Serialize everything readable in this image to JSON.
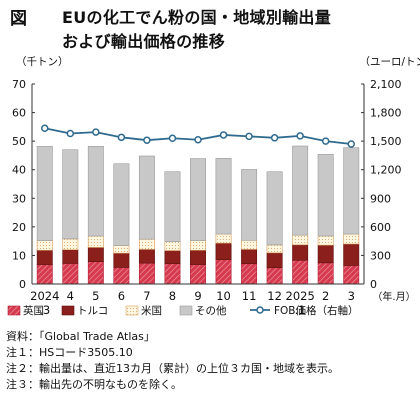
{
  "figure": {
    "label": "図",
    "title_line1": "EUの化工でん粉の国・地域別輸出量",
    "title_line2": "および輸出価格の推移"
  },
  "chart_data": {
    "type": "bar",
    "stacked": true,
    "left_axis_label": "（千トン）",
    "right_axis_label": "（ユーロ/トン）",
    "x_unit_label": "（年.月）",
    "x_labels": [
      "2024\n.3",
      "4",
      "5",
      "6",
      "7",
      "8",
      "9",
      "10",
      "11",
      "12",
      "2025\n.1",
      "2",
      "3"
    ],
    "ylim": [
      0,
      70
    ],
    "yticks": [
      0,
      10,
      20,
      30,
      40,
      50,
      60,
      70
    ],
    "y2lim": [
      0,
      2100
    ],
    "y2ticks": [
      0,
      300,
      600,
      900,
      1200,
      1500,
      1800,
      2100
    ],
    "y2tick_labels": [
      "0",
      "300",
      "600",
      "900",
      "1,200",
      "1,500",
      "1,800",
      "2,100"
    ],
    "grid": false,
    "legend_position": "bottom",
    "series": [
      {
        "name": "英国",
        "color": "#d63a4f",
        "values": [
          6.8,
          7.2,
          7.8,
          5.8,
          7.3,
          7.1,
          6.8,
          8.5,
          7.1,
          5.7,
          8.3,
          7.4,
          6.5
        ]
      },
      {
        "name": "トルコ",
        "color": "#8a1f1c",
        "values": [
          5.0,
          4.8,
          5.0,
          5.0,
          4.8,
          4.6,
          5.0,
          5.8,
          5.0,
          5.2,
          5.4,
          6.2,
          7.5
        ]
      },
      {
        "name": "米国",
        "color": "#fff6e0",
        "values": [
          3.4,
          3.8,
          4.0,
          2.7,
          3.6,
          3.1,
          3.4,
          3.2,
          3.2,
          2.8,
          3.4,
          3.2,
          3.5
        ]
      },
      {
        "name": "その他",
        "color": "#c8c8c8",
        "values": [
          33.0,
          31.2,
          31.4,
          28.6,
          29.1,
          24.5,
          28.7,
          26.5,
          24.8,
          25.6,
          31.2,
          28.6,
          30.2
        ]
      }
    ],
    "line_series": {
      "name": "FOB価格（右軸）",
      "color": "#2e6a8e",
      "axis": "right",
      "values": [
        1635,
        1580,
        1595,
        1540,
        1510,
        1530,
        1515,
        1565,
        1550,
        1535,
        1555,
        1500,
        1470
      ]
    }
  },
  "notes": [
    "資料：「Global Trade Atlas」",
    "注１：HSコード3505.10",
    "注２：輸出量は、直近13カ月（累計）の上位３カ国・地域を表示。",
    "注３：輸出先の不明なものを除く。"
  ]
}
